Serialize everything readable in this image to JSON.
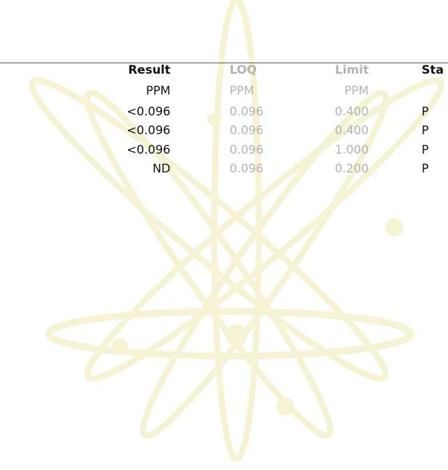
{
  "table": {
    "columns": [
      "Result",
      "LOQ",
      "Limit",
      "Sta"
    ],
    "units": [
      "PPM",
      "PPM",
      "PPM"
    ],
    "rows": [
      [
        "<0.096",
        "0.096",
        "0.400",
        "P"
      ],
      [
        "<0.096",
        "0.096",
        "0.400",
        "P"
      ],
      [
        "<0.096",
        "0.096",
        "1.000",
        "P"
      ],
      [
        "ND",
        "0.096",
        "0.200",
        "P"
      ]
    ]
  }
}
